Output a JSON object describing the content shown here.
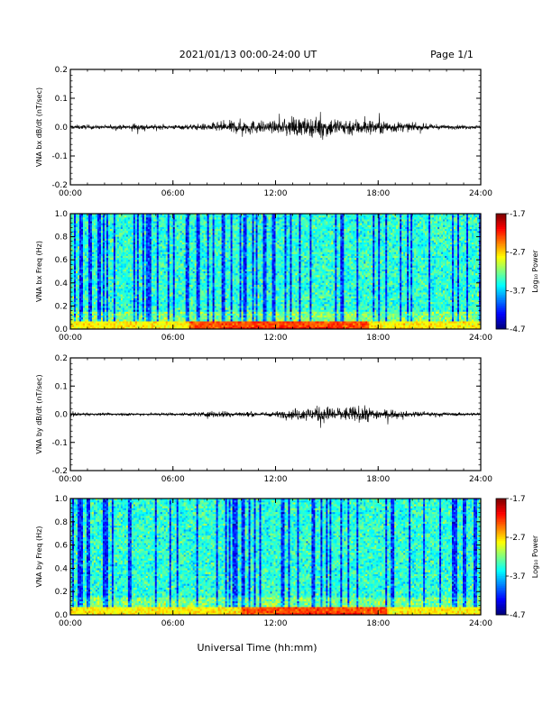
{
  "header": {
    "title": "2021/01/13  00:00-24:00 UT",
    "page": "Page 1/1"
  },
  "footer": {
    "xlabel": "Universal Time (hh:mm)"
  },
  "colors": {
    "trace": "#000000",
    "axis": "#000000",
    "background": "#ffffff"
  },
  "chart_data": [
    {
      "type": "line",
      "ylabel": "VNA bx dB/dt (nT/sec)",
      "x_ticks": [
        "00:00",
        "06:00",
        "12:00",
        "18:00",
        "24:00"
      ],
      "xlim": [
        0,
        24
      ],
      "ylim": [
        -0.2,
        0.2
      ],
      "y_ticks": [
        "0.2",
        "0.1",
        "0.0",
        "-0.1",
        "-0.2"
      ],
      "envelope": {
        "hours": [
          0,
          1,
          2,
          3,
          4,
          5,
          6,
          7,
          8,
          9,
          10,
          11,
          12,
          13,
          14,
          15,
          16,
          17,
          18,
          19,
          20,
          21,
          22,
          23,
          24
        ],
        "amplitude": [
          0.012,
          0.012,
          0.01,
          0.012,
          0.02,
          0.012,
          0.012,
          0.015,
          0.02,
          0.03,
          0.04,
          0.035,
          0.03,
          0.05,
          0.05,
          0.055,
          0.05,
          0.045,
          0.04,
          0.03,
          0.02,
          0.015,
          0.012,
          0.01,
          0.01
        ]
      }
    },
    {
      "type": "heatmap",
      "ylabel": "VNA bx Freq (Hz)",
      "x_ticks": [
        "00:00",
        "06:00",
        "12:00",
        "18:00",
        "24:00"
      ],
      "xlim": [
        0,
        24
      ],
      "ylim": [
        0,
        1.0
      ],
      "y_ticks": [
        "1.0",
        "0.8",
        "0.6",
        "0.4",
        "0.2",
        "0.0"
      ],
      "colorbar": {
        "label": "Log₁₀ Power",
        "ticks": [
          "-1.7",
          "-2.7",
          "-3.7",
          "-4.7"
        ],
        "range": [
          -4.7,
          -1.7
        ]
      },
      "low_freq_peak_hours": [
        9,
        16
      ]
    },
    {
      "type": "line",
      "ylabel": "VNA by dB/dt (nT/sec)",
      "x_ticks": [
        "00:00",
        "06:00",
        "12:00",
        "18:00",
        "24:00"
      ],
      "xlim": [
        0,
        24
      ],
      "ylim": [
        -0.2,
        0.2
      ],
      "y_ticks": [
        "0.2",
        "0.1",
        "0.0",
        "-0.1",
        "-0.2"
      ],
      "envelope": {
        "hours": [
          0,
          1,
          2,
          3,
          4,
          5,
          6,
          7,
          8,
          9,
          10,
          11,
          12,
          13,
          14,
          15,
          16,
          17,
          18,
          19,
          20,
          21,
          22,
          23,
          24
        ],
        "amplitude": [
          0.01,
          0.008,
          0.006,
          0.008,
          0.008,
          0.008,
          0.008,
          0.01,
          0.015,
          0.018,
          0.015,
          0.012,
          0.015,
          0.03,
          0.04,
          0.045,
          0.04,
          0.045,
          0.03,
          0.02,
          0.015,
          0.012,
          0.01,
          0.008,
          0.008
        ]
      }
    },
    {
      "type": "heatmap",
      "ylabel": "VNA by Freq (Hz)",
      "x_ticks": [
        "00:00",
        "06:00",
        "12:00",
        "18:00",
        "24:00"
      ],
      "xlim": [
        0,
        24
      ],
      "ylim": [
        0,
        1.0
      ],
      "y_ticks": [
        "1.0",
        "0.8",
        "0.6",
        "0.4",
        "0.2",
        "0.0"
      ],
      "colorbar": {
        "label": "Log₁₀ Power",
        "ticks": [
          "-1.7",
          "-2.7",
          "-3.7",
          "-4.7"
        ],
        "range": [
          -4.7,
          -1.7
        ]
      },
      "low_freq_peak_hours": [
        12,
        17
      ]
    }
  ]
}
